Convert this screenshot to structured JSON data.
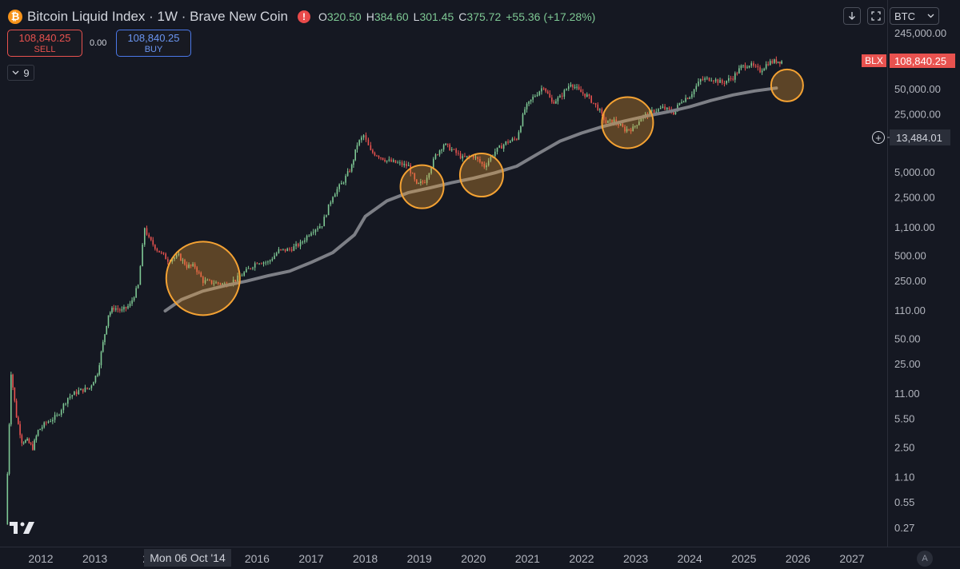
{
  "header": {
    "logo_glyph": "₿",
    "title": "Bitcoin Liquid Index · 1W · Brave New Coin",
    "warning_glyph": "!",
    "ohlc": [
      {
        "key": "O",
        "value": "320.50"
      },
      {
        "key": "H",
        "value": "384.60"
      },
      {
        "key": "L",
        "value": "301.45"
      },
      {
        "key": "C",
        "value": "375.72"
      }
    ],
    "change": "+55.36 (+17.28%)"
  },
  "trade": {
    "sell_price": "108,840.25",
    "sell_label": "SELL",
    "spread": "0.00",
    "buy_price": "108,840.25",
    "buy_label": "BUY"
  },
  "indicator": {
    "count": "9",
    "icon": "chevron-down-icon"
  },
  "toolbar": {
    "download_icon": "arrow-down-icon",
    "fullscreen_icon": "fullscreen-icon",
    "currency": "BTC",
    "currency_icon": "chevron-down-icon"
  },
  "price_axis": {
    "symbol_badge": "BLX",
    "last_price": "108,840.25",
    "crosshair_price": "13,484.01",
    "top_partial_label": "245,000.00"
  },
  "crosshair": {
    "date": "Mon 06 Oct '14"
  },
  "colors": {
    "background": "#151822",
    "up_candle": "#7ec894",
    "down_candle": "#e8524f",
    "moving_average": "#7d7f86",
    "highlight": "#f4a233",
    "sell": "#e8524f",
    "buy": "#4b78e8"
  },
  "chart_data": {
    "type": "line",
    "subtype": "candlestick",
    "title": "Bitcoin Liquid Index · 1W · Brave New Coin",
    "x_axis": {
      "tick_labels": [
        "2012",
        "2013",
        "20",
        "2016",
        "2017",
        "2018",
        "2019",
        "2020",
        "2021",
        "2022",
        "2023",
        "2024",
        "2025",
        "2026",
        "2027"
      ],
      "tick_years": [
        2012,
        2013,
        2014,
        2016,
        2017,
        2018,
        2019,
        2020,
        2021,
        2022,
        2023,
        2024,
        2025,
        2026,
        2027
      ],
      "range_years": [
        2011.3,
        2027.6
      ]
    },
    "y_axis": {
      "scale": "log",
      "tick_labels": [
        "245,000.00",
        "50,000.00",
        "25,000.00",
        "5,000.00",
        "2,500.00",
        "1,100.00",
        "500.00",
        "250.00",
        "110.00",
        "50.00",
        "25.00",
        "11.00",
        "5.50",
        "2.50",
        "1.10",
        "0.55",
        "0.27"
      ],
      "tick_values": [
        245000,
        50000,
        25000,
        5000,
        2500,
        1100,
        500,
        250,
        110,
        50,
        25,
        11,
        5.5,
        2.5,
        1.1,
        0.55,
        0.27
      ],
      "range": [
        0.2,
        245000
      ]
    },
    "series": [
      {
        "type": "candlestick",
        "x": [
          2011.35,
          2011.45,
          2011.55,
          2011.65,
          2011.75,
          2011.85,
          2011.95,
          2012.1,
          2012.3,
          2012.5,
          2012.7,
          2012.9,
          2013.05,
          2013.15,
          2013.25,
          2013.35,
          2013.5,
          2013.65,
          2013.8,
          2013.92,
          2014.0,
          2014.15,
          2014.35,
          2014.55,
          2014.7,
          2014.85,
          2015.0,
          2015.2,
          2015.4,
          2015.6,
          2015.8,
          2016.0,
          2016.2,
          2016.4,
          2016.6,
          2016.8,
          2017.0,
          2017.2,
          2017.4,
          2017.6,
          2017.75,
          2017.85,
          2017.97,
          2018.1,
          2018.25,
          2018.4,
          2018.6,
          2018.8,
          2018.95,
          2019.1,
          2019.3,
          2019.45,
          2019.6,
          2019.8,
          2020.0,
          2020.2,
          2020.4,
          2020.6,
          2020.8,
          2020.95,
          2021.1,
          2021.3,
          2021.45,
          2021.6,
          2021.8,
          2021.95,
          2022.1,
          2022.3,
          2022.45,
          2022.6,
          2022.8,
          2022.95,
          2023.1,
          2023.3,
          2023.5,
          2023.7,
          2023.85,
          2024.0,
          2024.2,
          2024.4,
          2024.6,
          2024.8,
          2024.95,
          2025.1,
          2025.3,
          2025.45,
          2025.6,
          2025.7
        ],
        "close": [
          0.3,
          20,
          6,
          3,
          3,
          2.5,
          4,
          5,
          6,
          10,
          12,
          13,
          20,
          45,
          100,
          120,
          110,
          130,
          220,
          1100,
          800,
          600,
          450,
          500,
          380,
          375,
          250,
          240,
          230,
          260,
          330,
          430,
          420,
          580,
          600,
          700,
          1000,
          1200,
          2700,
          4000,
          6000,
          11000,
          14000,
          9000,
          8000,
          7000,
          6500,
          6000,
          3500,
          4000,
          8000,
          11000,
          9500,
          7500,
          8000,
          6000,
          9000,
          11500,
          13000,
          29000,
          40000,
          55000,
          35000,
          40000,
          60000,
          48000,
          42000,
          30000,
          20000,
          21000,
          16500,
          17000,
          23000,
          27000,
          30000,
          26500,
          37000,
          42000,
          65000,
          68000,
          60000,
          70000,
          93000,
          100000,
          84000,
          105000,
          110000,
          108840
        ],
        "name": ""
      },
      {
        "type": "moving_average",
        "x": [
          2014.3,
          2014.6,
          2015.0,
          2015.4,
          2015.8,
          2016.2,
          2016.6,
          2017.0,
          2017.4,
          2017.8,
          2018.0,
          2018.4,
          2018.8,
          2019.2,
          2019.6,
          2020.0,
          2020.4,
          2020.8,
          2021.2,
          2021.6,
          2022.0,
          2022.4,
          2022.8,
          2023.2,
          2023.6,
          2024.0,
          2024.4,
          2024.8,
          2025.2,
          2025.6
        ],
        "values": [
          110,
          150,
          190,
          220,
          250,
          290,
          330,
          420,
          550,
          900,
          1500,
          2300,
          2900,
          3300,
          3800,
          4300,
          5000,
          6000,
          8500,
          12000,
          15000,
          18000,
          21000,
          24000,
          27000,
          31000,
          37000,
          43000,
          48000,
          52000
        ],
        "name": ""
      }
    ],
    "highlights": [
      {
        "x": 2015.0,
        "y": 270
      },
      {
        "x": 2019.05,
        "y": 3400
      },
      {
        "x": 2020.15,
        "y": 4700
      },
      {
        "x": 2022.85,
        "y": 20000
      },
      {
        "x": 2025.8,
        "y": 56000
      }
    ],
    "grid": false,
    "legend": "none",
    "xlabel": "",
    "ylabel": ""
  }
}
